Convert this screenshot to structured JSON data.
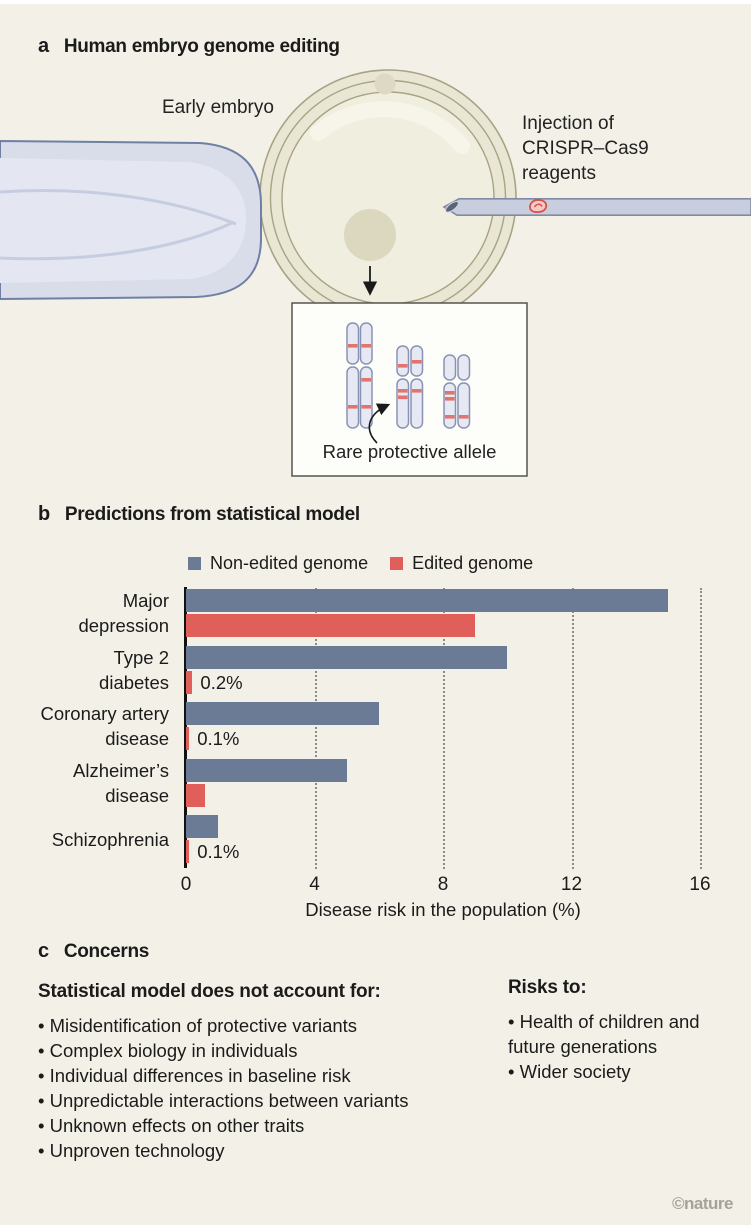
{
  "page": {
    "background": "#f3f1e7",
    "watermark": "©nature"
  },
  "panel_a": {
    "letter": "a",
    "title": "Human embryo genome editing",
    "labels": {
      "early_embryo": "Early embryo",
      "injection": "Injection of\nCRISPR–Cas9\nreagents",
      "rare_allele": "Rare protective allele"
    }
  },
  "panel_b": {
    "letter": "b",
    "title": "Predictions from statistical model"
  },
  "chart_data": {
    "type": "bar",
    "orientation": "horizontal",
    "title": "Predictions from statistical model",
    "categories": [
      "Major\ndepression",
      "Type 2\ndiabetes",
      "Coronary artery\ndisease",
      "Alzheimer’s\ndisease",
      "Schizophrenia"
    ],
    "series": [
      {
        "name": "Non-edited genome",
        "color": "#6c7b95",
        "values": [
          15,
          10,
          6,
          5,
          1
        ]
      },
      {
        "name": "Edited genome",
        "color": "#e05f5b",
        "values": [
          9,
          0.2,
          0.1,
          0.6,
          0.1
        ],
        "value_labels": [
          "",
          "0.2%",
          "0.1%",
          "",
          "0.1%"
        ]
      }
    ],
    "xlabel": "Disease risk in the population (%)",
    "xlim": [
      0,
      16
    ],
    "xticks": [
      0,
      4,
      8,
      12,
      16
    ],
    "grid": "vertical dotted gridlines at ticks",
    "legend_position": "top"
  },
  "panel_c": {
    "letter": "c",
    "title": "Concerns",
    "bullet_char": "•",
    "left": {
      "heading": "Statistical model does not account for:",
      "bullets": [
        "Misidentification of protective variants",
        "Complex biology in individuals",
        "Individual differences in baseline risk",
        "Unpredictable interactions between variants",
        "Unknown effects on other traits",
        "Unproven technology"
      ]
    },
    "right": {
      "heading": "Risks to:",
      "bullets": [
        "Health of children and future generations",
        "Wider society"
      ]
    }
  }
}
